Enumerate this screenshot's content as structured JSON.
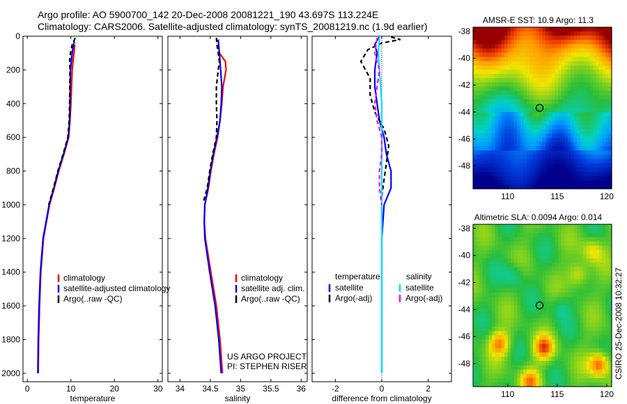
{
  "title": {
    "line1": "Argo profile: AO 5900700_142 20-Dec-2008 20081221_190 43.697S 113.224E",
    "line2": "Climatology: CARS2006. Satellite-adjusted climatology: synTS_20081219.nc (1.9d earlier)"
  },
  "colors": {
    "climatology": "#ff0000",
    "satellite": "#0000ff",
    "argo": "#000000",
    "sal_satellite": "#00e0ff",
    "sal_argo": "#ff00ff"
  },
  "chart_data": [
    {
      "type": "line",
      "xlabel": "temperature",
      "xlim": [
        -1,
        31
      ],
      "ylim": [
        0,
        2050
      ],
      "y_inverted": true,
      "xticks": [
        "0",
        "10",
        "20",
        "30"
      ],
      "yticks": [
        "0",
        "200",
        "400",
        "600",
        "800",
        "1000",
        "1200",
        "1400",
        "1600",
        "1800",
        "2000"
      ],
      "legend": [
        "climatology",
        "satellite-adjusted climatology",
        "Argo(..raw -QC)"
      ],
      "series": [
        {
          "name": "climatology",
          "color": "#ff0000",
          "dash": "",
          "depth": [
            50,
            200,
            400,
            500,
            600,
            700,
            800,
            900,
            1000,
            1200,
            1400,
            1600,
            1800,
            2000
          ],
          "values": [
            10.9,
            10.3,
            10.0,
            9.8,
            9.5,
            8.4,
            7.2,
            6.2,
            5.1,
            3.7,
            3.1,
            2.8,
            2.6,
            2.5
          ]
        },
        {
          "name": "satellite-adjusted climatology",
          "color": "#0000ff",
          "dash": "",
          "depth": [
            30,
            50,
            100,
            200,
            400,
            500,
            600,
            700,
            800,
            900,
            1000,
            1200,
            1400,
            1600,
            1800,
            2000
          ],
          "values": [
            10.8,
            10.6,
            10.3,
            9.9,
            9.8,
            9.7,
            9.4,
            8.3,
            7.1,
            6.1,
            5.0,
            3.6,
            3.0,
            2.7,
            2.5,
            2.4
          ]
        },
        {
          "name": "Argo(..raw -QC)",
          "color": "#000000",
          "dash": "6,4",
          "depth": [
            10,
            50,
            100,
            150,
            200,
            400,
            500,
            600,
            700,
            800,
            900,
            1000
          ],
          "values": [
            11.0,
            10.3,
            9.9,
            9.7,
            9.8,
            9.7,
            9.6,
            9.3,
            8.2,
            7.0,
            6.0,
            4.9
          ]
        }
      ]
    },
    {
      "type": "line",
      "xlabel": "salinity",
      "xlim": [
        33.8,
        36.1
      ],
      "ylim": [
        0,
        2050
      ],
      "y_inverted": true,
      "xticks": [
        "34",
        "34.5",
        "35",
        "35.5",
        "36"
      ],
      "legend": [
        "climatology",
        "satellite adj. clim.",
        "Argo(..raw -QC)"
      ],
      "annotation": [
        "US ARGO PROJECT",
        "PI: STEPHEN RISER"
      ],
      "series": [
        {
          "name": "climatology",
          "color": "#ff0000",
          "dash": "",
          "depth": [
            20,
            100,
            150,
            200,
            300,
            400,
            500,
            600,
            700,
            800,
            900,
            1000,
            1100,
            1200,
            1400,
            1600,
            1800,
            2000
          ],
          "values": [
            34.63,
            34.65,
            34.75,
            34.76,
            34.71,
            34.69,
            34.66,
            34.62,
            34.56,
            34.51,
            34.47,
            34.41,
            34.4,
            34.42,
            34.51,
            34.6,
            34.66,
            34.7
          ]
        },
        {
          "name": "satellite adj. clim.",
          "color": "#0000ff",
          "dash": "",
          "depth": [
            20,
            100,
            200,
            300,
            400,
            500,
            600,
            700,
            800,
            900,
            1000,
            1100,
            1200,
            1400,
            1600,
            1800,
            2000
          ],
          "values": [
            34.63,
            34.65,
            34.67,
            34.69,
            34.68,
            34.66,
            34.61,
            34.55,
            34.5,
            34.46,
            34.41,
            34.4,
            34.41,
            34.49,
            34.58,
            34.64,
            34.68
          ]
        },
        {
          "name": "Argo(..raw -QC)",
          "color": "#000000",
          "dash": "6,4",
          "depth": [
            10,
            50,
            100,
            150,
            200,
            300,
            400,
            500,
            600,
            700,
            800,
            900,
            990
          ],
          "values": [
            34.6,
            34.61,
            34.63,
            34.65,
            34.63,
            34.6,
            34.6,
            34.61,
            34.6,
            34.54,
            34.49,
            34.45,
            34.38
          ]
        }
      ]
    },
    {
      "type": "line",
      "xlabel": "difference from climatology",
      "xlim": [
        -3,
        3
      ],
      "ylim": [
        0,
        2050
      ],
      "y_inverted": true,
      "xticks": [
        "-2",
        "0",
        "2"
      ],
      "legend_groups": [
        {
          "header": "temperature",
          "items": [
            "satellite",
            "Argo(-adj)"
          ]
        },
        {
          "header": "salinity",
          "items": [
            "satellite",
            "Argo(-adj)"
          ]
        }
      ],
      "series": [
        {
          "name": "temperature satellite",
          "color": "#0000ff",
          "dash": "",
          "depth": [
            0,
            50,
            100,
            200,
            300,
            400,
            500,
            600,
            700,
            800,
            900,
            1000,
            1200,
            1500,
            2000
          ],
          "values": [
            -0.1,
            -0.3,
            -0.2,
            -0.3,
            -0.3,
            -0.2,
            -0.1,
            0.1,
            0.2,
            0.4,
            0.4,
            0.1,
            0.0,
            0.0,
            0.0
          ]
        },
        {
          "name": "temperature Argo(-adj)",
          "color": "#000000",
          "dash": "6,4",
          "depth": [
            5,
            20,
            40,
            80,
            150,
            250,
            350,
            450,
            550,
            650,
            750,
            850,
            950
          ],
          "values": [
            0.4,
            0.8,
            0.0,
            -0.6,
            -0.9,
            -0.5,
            -0.5,
            -0.3,
            0.1,
            0.3,
            0.2,
            0.1,
            0.0
          ]
        },
        {
          "name": "salinity satellite",
          "color": "#00e0ff",
          "dash": "",
          "depth": [
            0,
            100,
            200,
            400,
            600,
            800,
            1000,
            1200,
            1500,
            2000
          ],
          "values": [
            -0.1,
            -0.15,
            -0.1,
            0.0,
            0.0,
            0.0,
            0.0,
            0.0,
            0.0,
            0.0
          ]
        },
        {
          "name": "salinity Argo(-adj)",
          "color": "#ff00ff",
          "dash": "6,4",
          "depth": [
            10,
            100,
            200,
            300,
            400,
            500,
            600,
            700,
            800,
            900,
            1000
          ],
          "values": [
            -0.2,
            -0.3,
            -0.1,
            -0.2,
            -0.3,
            -0.2,
            0.0,
            0.0,
            -0.1,
            -0.1,
            0.0
          ]
        }
      ]
    },
    {
      "type": "heatmap",
      "title": "AMSR-E SST: 10.9  Argo: 11.3",
      "xlim": [
        106.5,
        120.5
      ],
      "ylim": [
        -49.7,
        -37.7
      ],
      "xticks": [
        "110",
        "115",
        "120"
      ],
      "yticks": [
        "-38",
        "-40",
        "-42",
        "-44",
        "-46",
        "-48"
      ],
      "marker": {
        "lon": 113.224,
        "lat": -43.697
      }
    },
    {
      "type": "heatmap",
      "title": "Altimetric SLA: 0.0094  Argo: 0.014",
      "xlim": [
        106.5,
        120.5
      ],
      "ylim": [
        -49.7,
        -37.7
      ],
      "xticks": [
        "110",
        "115",
        "120"
      ],
      "yticks": [
        "-38",
        "-40",
        "-42",
        "-44",
        "-46",
        "-48"
      ],
      "marker": {
        "lon": 113.224,
        "lat": -43.697
      }
    }
  ],
  "footer": "CSIRO 25-Dec-2008 10:32:27"
}
